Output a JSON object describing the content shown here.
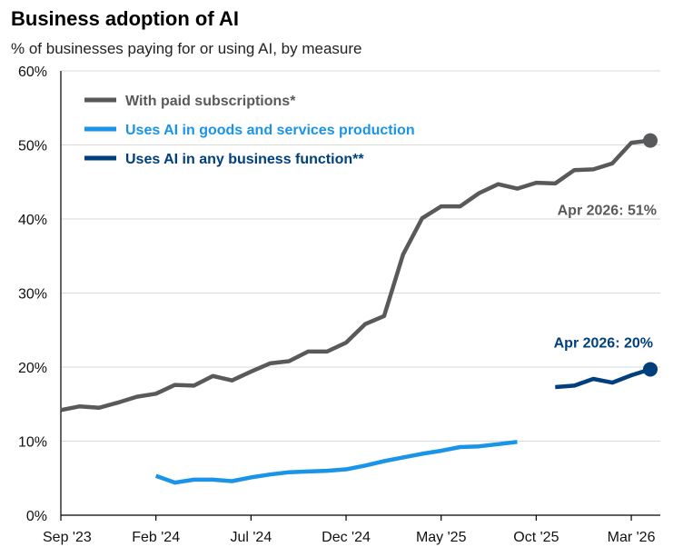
{
  "chart_data": {
    "type": "line",
    "title": "Business adoption of AI",
    "subtitle": "% of businesses paying for or using AI, by measure",
    "ylim": [
      0,
      60
    ],
    "y_ticks": [
      0,
      10,
      20,
      30,
      40,
      50,
      60
    ],
    "y_tick_labels": [
      "0%",
      "10%",
      "20%",
      "30%",
      "40%",
      "50%",
      "60%"
    ],
    "xlim": [
      "2023-09",
      "2026-04"
    ],
    "x_ticks": [
      "2023-09",
      "2024-02",
      "2024-07",
      "2024-12",
      "2025-05",
      "2025-10",
      "2026-03"
    ],
    "x_tick_labels": [
      "Sep '23",
      "Feb '24",
      "Jul '24",
      "Dec '24",
      "May '25",
      "Oct '25",
      "Mar '26"
    ],
    "grid": "horizontal",
    "legend_position": "top-left",
    "series": [
      {
        "name": "With paid subscriptions*",
        "color": "#58595b",
        "points": [
          [
            "2023-09",
            14.2
          ],
          [
            "2023-10",
            14.7
          ],
          [
            "2023-11",
            14.5
          ],
          [
            "2023-12",
            15.2
          ],
          [
            "2024-01",
            16.0
          ],
          [
            "2024-02",
            16.4
          ],
          [
            "2024-03",
            17.6
          ],
          [
            "2024-04",
            17.5
          ],
          [
            "2024-05",
            18.8
          ],
          [
            "2024-06",
            18.2
          ],
          [
            "2024-07",
            19.4
          ],
          [
            "2024-08",
            20.5
          ],
          [
            "2024-09",
            20.8
          ],
          [
            "2024-10",
            22.1
          ],
          [
            "2024-11",
            22.1
          ],
          [
            "2024-12",
            23.3
          ],
          [
            "2025-01",
            25.8
          ],
          [
            "2025-02",
            26.9
          ],
          [
            "2025-03",
            35.2
          ],
          [
            "2025-04",
            40.1
          ],
          [
            "2025-05",
            41.7
          ],
          [
            "2025-06",
            41.7
          ],
          [
            "2025-07",
            43.5
          ],
          [
            "2025-08",
            44.7
          ],
          [
            "2025-09",
            44.1
          ],
          [
            "2025-10",
            44.9
          ],
          [
            "2025-11",
            44.8
          ],
          [
            "2025-12",
            46.6
          ],
          [
            "2026-01",
            46.7
          ],
          [
            "2026-02",
            47.5
          ],
          [
            "2026-03",
            50.3
          ],
          [
            "2026-04",
            50.6
          ]
        ]
      },
      {
        "name": "Uses AI in goods and services production",
        "color": "#1a94e8",
        "points": [
          [
            "2024-02",
            5.3
          ],
          [
            "2024-03",
            4.4
          ],
          [
            "2024-04",
            4.8
          ],
          [
            "2024-05",
            4.8
          ],
          [
            "2024-06",
            4.6
          ],
          [
            "2024-07",
            5.1
          ],
          [
            "2024-08",
            5.5
          ],
          [
            "2024-09",
            5.8
          ],
          [
            "2024-10",
            5.9
          ],
          [
            "2024-11",
            6.0
          ],
          [
            "2024-12",
            6.2
          ],
          [
            "2025-01",
            6.7
          ],
          [
            "2025-02",
            7.3
          ],
          [
            "2025-03",
            7.8
          ],
          [
            "2025-04",
            8.3
          ],
          [
            "2025-05",
            8.7
          ],
          [
            "2025-06",
            9.2
          ],
          [
            "2025-07",
            9.3
          ],
          [
            "2025-08",
            9.6
          ],
          [
            "2025-09",
            9.9
          ]
        ]
      },
      {
        "name": "Uses AI in any business function**",
        "color": "#003f7d",
        "points": [
          [
            "2025-11",
            17.3
          ],
          [
            "2025-12",
            17.5
          ],
          [
            "2026-01",
            18.4
          ],
          [
            "2026-02",
            17.9
          ],
          [
            "2026-03",
            18.9
          ],
          [
            "2026-04",
            19.7
          ]
        ]
      }
    ],
    "annotations": [
      {
        "text": "Apr 2026: 51%",
        "series": 0,
        "color": "#58595b"
      },
      {
        "text": "Apr 2026: 20%",
        "series": 2,
        "color": "#003f7d"
      }
    ]
  }
}
